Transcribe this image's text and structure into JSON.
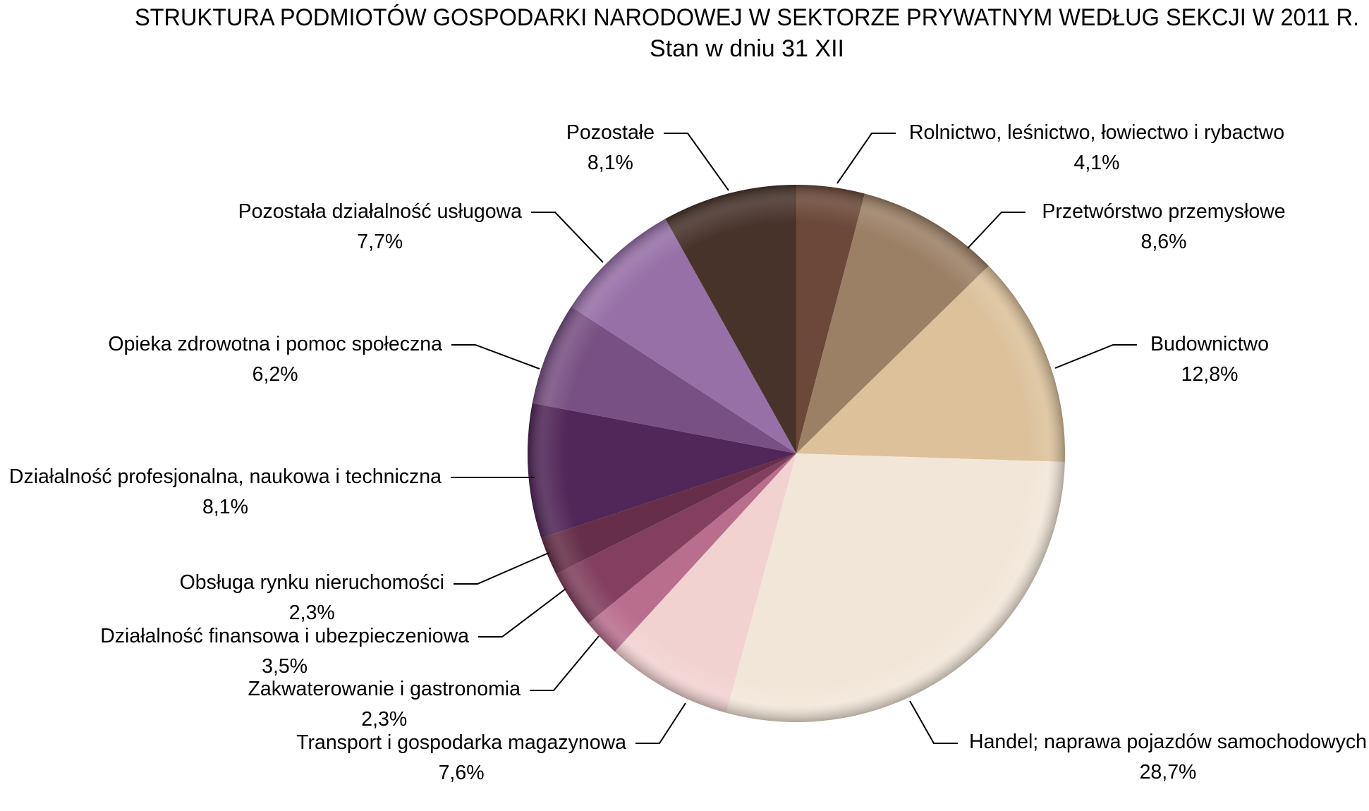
{
  "chart_data": {
    "type": "pie",
    "title": "STRUKTURA PODMIOTÓW GOSPODARKI NARODOWEJ W SEKTORZE PRYWATNYM WEDŁUG SEKCJI W 2011 R.",
    "subtitle": "Stan w dniu 31 XII",
    "unit": "%",
    "slices": [
      {
        "label": "Rolnictwo, leśnictwo, łowiectwo i rybactwo",
        "value": 4.1,
        "value_label": "4,1%",
        "color": "#6b4838"
      },
      {
        "label": "Przetwórstwo przemysłowe",
        "value": 8.6,
        "value_label": "8,6%",
        "color": "#9c8066"
      },
      {
        "label": "Budownictwo",
        "value": 12.8,
        "value_label": "12,8%",
        "color": "#dcc19b"
      },
      {
        "label": "Handel; naprawa pojazdów samochodowych",
        "value": 28.7,
        "value_label": "28,7%",
        "color": "#f2e6d8"
      },
      {
        "label": "Transport i gospodarka magazynowa",
        "value": 7.6,
        "value_label": "7,6%",
        "color": "#f1d2d0"
      },
      {
        "label": "Zakwaterowanie i gastronomia",
        "value": 2.3,
        "value_label": "2,3%",
        "color": "#b96e8d"
      },
      {
        "label": "Działalność finansowa i ubezpieczeniowa",
        "value": 3.5,
        "value_label": "3,5%",
        "color": "#82405e"
      },
      {
        "label": "Obsługa rynku nieruchomości",
        "value": 2.3,
        "value_label": "2,3%",
        "color": "#662e48"
      },
      {
        "label": "Działalność profesjonalna, naukowa i techniczna",
        "value": 8.1,
        "value_label": "8,1%",
        "color": "#512658"
      },
      {
        "label": "Opieka zdrowotna i pomoc społeczna",
        "value": 6.2,
        "value_label": "6,2%",
        "color": "#785083"
      },
      {
        "label": "Pozostała działalność usługowa",
        "value": 7.7,
        "value_label": "7,7%",
        "color": "#9670a7"
      },
      {
        "label": "Pozostałe",
        "value": 8.1,
        "value_label": "8,1%",
        "color": "#48332b"
      }
    ]
  }
}
